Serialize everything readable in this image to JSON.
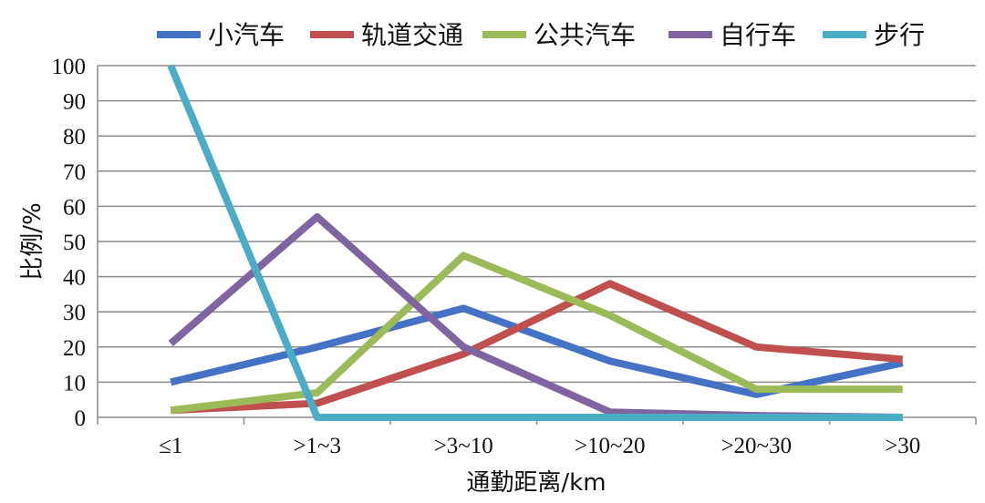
{
  "chart_data": {
    "type": "line",
    "title": "",
    "xlabel": "通勤距离/km",
    "ylabel": "比例/%",
    "ylim": [
      0,
      100
    ],
    "yticks": [
      0,
      10,
      20,
      30,
      40,
      50,
      60,
      70,
      80,
      90,
      100
    ],
    "grid": true,
    "legend_position": "top",
    "categories": [
      "≤1",
      ">1~3",
      ">3~10",
      ">10~20",
      ">20~30",
      ">30"
    ],
    "series": [
      {
        "name": "小汽车",
        "color": "#4472C4",
        "values": [
          10,
          20,
          31,
          16,
          6.5,
          15.5
        ]
      },
      {
        "name": "轨道交通",
        "color": "#C0504D",
        "values": [
          2,
          4,
          18,
          38,
          20,
          16.5
        ]
      },
      {
        "name": "公共汽车",
        "color": "#9BBB59",
        "values": [
          2,
          7,
          46,
          29,
          8,
          8
        ]
      },
      {
        "name": "自行车",
        "color": "#8064A2",
        "values": [
          21,
          57,
          20,
          1.5,
          0.5,
          0
        ]
      },
      {
        "name": "步行",
        "color": "#4BACC6",
        "values": [
          100,
          0,
          0,
          0,
          0,
          0
        ]
      }
    ]
  }
}
